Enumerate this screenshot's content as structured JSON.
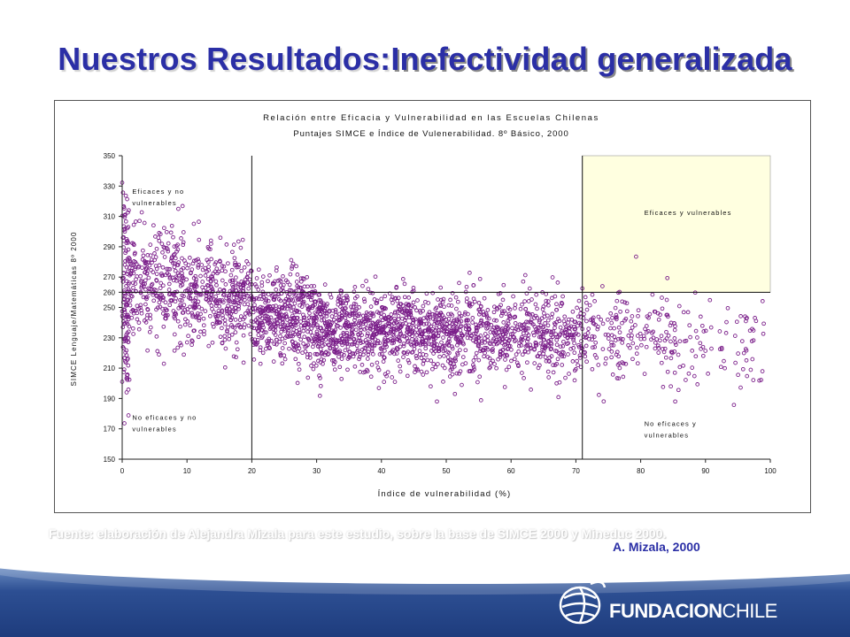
{
  "slide": {
    "title_part1": "Nuestros Resultados:",
    "title_part2": "Inefectividad generalizada",
    "source_note": "Fuente: elaboración de Alejandra Mizala para este estudio, sobre la base de SIMCE 2000 y Mineduc 2000.",
    "credit": "A. Mizala, 2000",
    "logo_text_bold": "FUNDACION",
    "logo_text_light": "CHILE"
  },
  "chart_data": {
    "type": "scatter",
    "title": "Relación entre Eficacia y Vulnerabilidad en las Escuelas Chilenas",
    "subtitle": "Puntajes SIMCE e Índice de Vulenerabilidad. 8º Básico, 2000",
    "xlabel": "Índice de vulnerabilidad (%)",
    "ylabel": "SIMCE Lenguaje/Matemáticas 8º 2000",
    "xlim": [
      0,
      100
    ],
    "ylim": [
      150,
      350
    ],
    "x_ticks": [
      0,
      10,
      20,
      30,
      40,
      50,
      60,
      70,
      80,
      90,
      100
    ],
    "y_ticks": [
      150,
      170,
      190,
      210,
      230,
      250,
      260,
      270,
      290,
      310,
      330,
      350
    ],
    "grid": false,
    "reference_lines": {
      "x": [
        20,
        71
      ],
      "y": 260
    },
    "highlight_region": {
      "x": [
        71,
        100
      ],
      "y": [
        260,
        350
      ],
      "color": "#ffffe0"
    },
    "marker_color": "#7b1f8a",
    "quadrant_labels": [
      {
        "line1": "Eficaces y no",
        "line2": "vulnerables",
        "x": 1,
        "y": 325
      },
      {
        "line1": "Eficaces y vulnerables",
        "line2": "",
        "x": 80,
        "y": 311
      },
      {
        "line1": "No eficaces y no",
        "line2": "vulnerables",
        "x": 1,
        "y": 176
      },
      {
        "line1": "No eficaces y",
        "line2": "vulnerables",
        "x": 80,
        "y": 172
      }
    ],
    "points_note": "approx. 3000 schools; dense cloud descending from ~265 at x≈5 to ~230 at x≈60-90",
    "density_model": [
      {
        "x_range": [
          0,
          1
        ],
        "mean": 258,
        "sd": 35,
        "weight": 0.04
      },
      {
        "x_range": [
          1,
          10
        ],
        "mean": 265,
        "sd": 18,
        "weight": 0.1
      },
      {
        "x_range": [
          10,
          20
        ],
        "mean": 256,
        "sd": 16,
        "weight": 0.12
      },
      {
        "x_range": [
          20,
          30
        ],
        "mean": 243,
        "sd": 15,
        "weight": 0.15
      },
      {
        "x_range": [
          30,
          45
        ],
        "mean": 235,
        "sd": 13,
        "weight": 0.22
      },
      {
        "x_range": [
          45,
          60
        ],
        "mean": 232,
        "sd": 13,
        "weight": 0.18
      },
      {
        "x_range": [
          60,
          71
        ],
        "mean": 233,
        "sd": 14,
        "weight": 0.1
      },
      {
        "x_range": [
          71,
          85
        ],
        "mean": 230,
        "sd": 15,
        "weight": 0.06
      },
      {
        "x_range": [
          85,
          99
        ],
        "mean": 225,
        "sd": 17,
        "weight": 0.03
      }
    ]
  }
}
